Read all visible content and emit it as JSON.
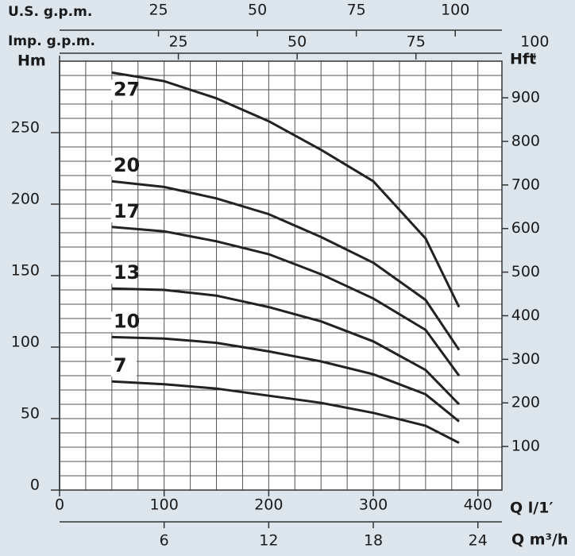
{
  "chart_data": {
    "type": "line",
    "x_label": "Q l/1′",
    "y_label": "Hm",
    "y2_label": "Hft",
    "xlim": [
      0,
      423
    ],
    "xticks": [
      0,
      100,
      200,
      300,
      400
    ],
    "ylim": [
      0,
      300
    ],
    "yticks": [
      0,
      50,
      100,
      150,
      200,
      250
    ],
    "y2lim": [
      0,
      984
    ],
    "y2ticks": [
      100,
      200,
      300,
      400,
      500,
      600,
      700,
      800,
      900
    ],
    "grid": true,
    "minor_xticks": [
      25,
      50,
      75,
      100,
      125,
      150,
      175,
      200,
      225,
      250,
      275,
      300,
      325,
      350,
      375,
      400
    ],
    "minor_yticks": [
      10,
      20,
      30,
      40,
      50,
      60,
      70,
      80,
      90,
      100,
      110,
      120,
      130,
      140,
      150,
      160,
      170,
      180,
      190,
      200,
      210,
      220,
      230,
      240,
      250,
      260,
      270,
      280,
      290
    ],
    "top_axes": [
      {
        "label": "U.S. g.p.m.",
        "lim": [
          0,
          111.8
        ],
        "ticks": [
          25,
          50,
          75,
          100
        ]
      },
      {
        "label": "Imp. g.p.m.",
        "lim": [
          0,
          93.1
        ],
        "ticks": [
          25,
          50,
          75,
          100
        ]
      }
    ],
    "bottom_axis2": {
      "label": "Q m³/h",
      "lim": [
        0,
        25.38
      ],
      "ticks": [
        6,
        12,
        18,
        24
      ]
    },
    "x": [
      50,
      100,
      150,
      200,
      250,
      300,
      350,
      382
    ],
    "series": [
      {
        "name": "27",
        "color": "#222222",
        "values": [
          292,
          286,
          274,
          258,
          238,
          216,
          176,
          128
        ]
      },
      {
        "name": "20",
        "color": "#222222",
        "values": [
          216,
          212,
          204,
          193,
          177,
          159,
          133,
          98
        ]
      },
      {
        "name": "17",
        "color": "#222222",
        "values": [
          184,
          181,
          174,
          165,
          151,
          134,
          112,
          80
        ]
      },
      {
        "name": "13",
        "color": "#222222",
        "values": [
          141,
          140,
          136,
          128,
          118,
          104,
          84,
          60
        ]
      },
      {
        "name": "10",
        "color": "#222222",
        "values": [
          107,
          106,
          103,
          97,
          90,
          81,
          67,
          48
        ]
      },
      {
        "name": "7",
        "color": "#222222",
        "values": [
          76,
          74,
          71,
          66,
          61,
          54,
          45,
          33
        ]
      }
    ]
  }
}
